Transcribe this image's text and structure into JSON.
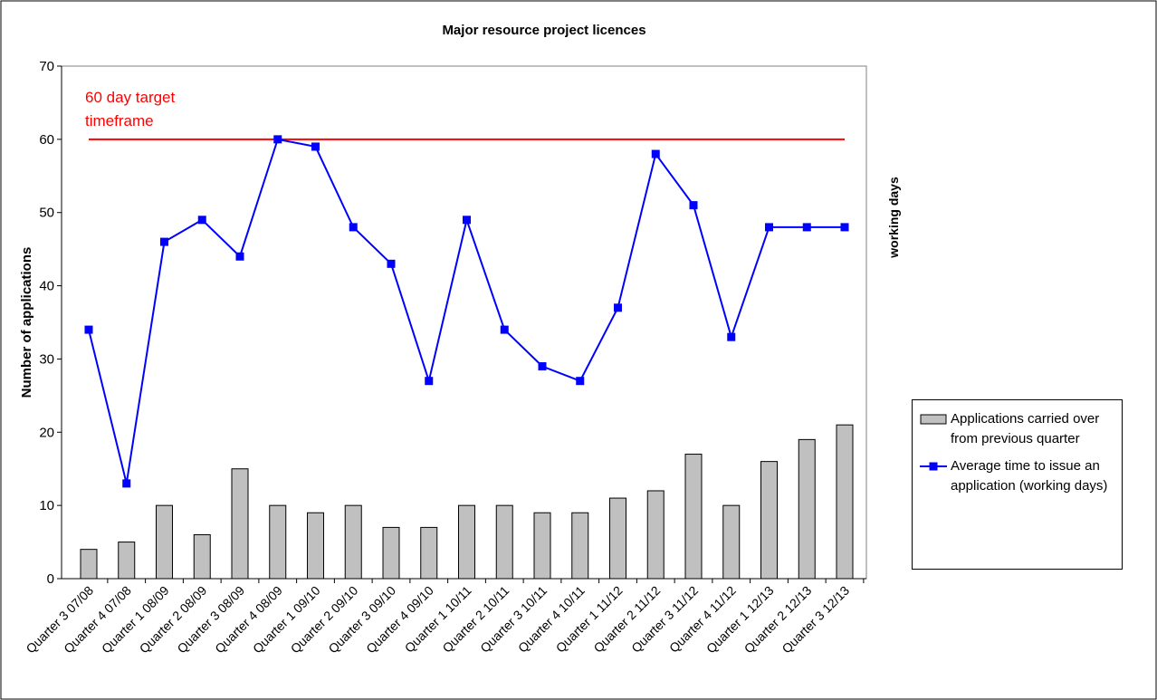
{
  "chart_data": {
    "type": "combo",
    "title": "Major resource project licences",
    "y_label": "Number of applications",
    "y2_label": "working days",
    "categories": [
      "Quarter 3 07/08",
      "Quarter 4 07/08",
      "Quarter 1 08/09",
      "Quarter 2 08/09",
      "Quarter 3 08/09",
      "Quarter 4 08/09",
      "Quarter 1 09/10",
      "Quarter 2 09/10",
      "Quarter 3 09/10",
      "Quarter 4 09/10",
      "Quarter 1 10/11",
      "Quarter 2 10/11",
      "Quarter 3 10/11",
      "Quarter 4 10/11",
      "Quarter 1 11/12",
      "Quarter 2 11/12",
      "Quarter 3 11/12",
      "Quarter 4 11/12",
      "Quarter 1 12/13",
      "Quarter 2 12/13",
      "Quarter 3 12/13"
    ],
    "series": [
      {
        "name": "Applications carried over from previous quarter",
        "type": "bar",
        "color": "#c0c0c0",
        "values": [
          4,
          5,
          10,
          6,
          15,
          10,
          9,
          10,
          7,
          7,
          10,
          10,
          9,
          9,
          11,
          12,
          17,
          10,
          16,
          19,
          21
        ]
      },
      {
        "name": "Average time to issue an application (working days)",
        "type": "line",
        "color": "#0000ff",
        "values": [
          34,
          13,
          46,
          49,
          44,
          60,
          59,
          48,
          43,
          27,
          49,
          34,
          29,
          27,
          37,
          58,
          51,
          33,
          48,
          48,
          48
        ]
      }
    ],
    "target": {
      "value": 60,
      "color": "#ff0000",
      "label": [
        "60 day target",
        "timeframe"
      ]
    },
    "ylim": [
      0,
      70
    ],
    "yticks": [
      0,
      10,
      20,
      30,
      40,
      50,
      60,
      70
    ],
    "grid": false,
    "legend": "right"
  }
}
